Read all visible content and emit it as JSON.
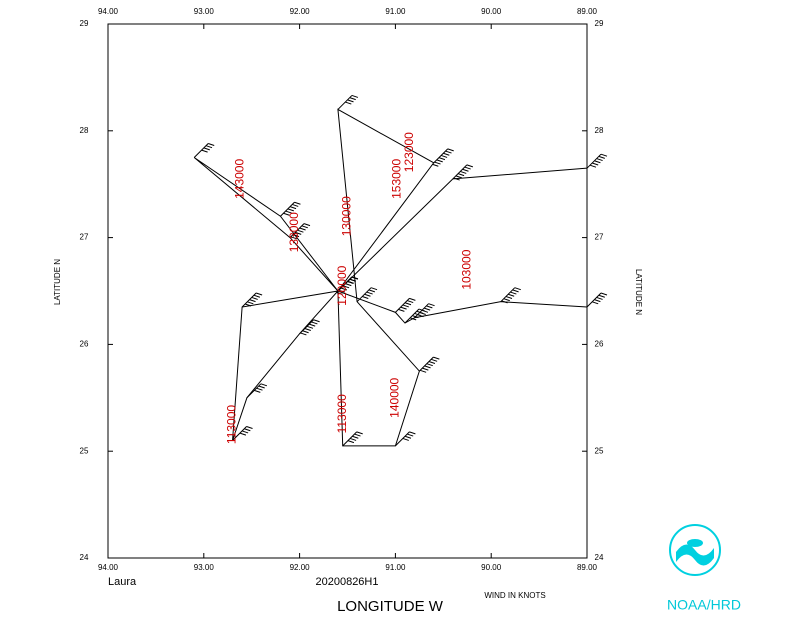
{
  "chart_data": {
    "type": "line",
    "storm": "Laura",
    "mission": "20200826H1",
    "xlabel": "LONGITUDE  W",
    "ylabel": "LATITUDE  N",
    "wind_units": "WIND IN KNOTS",
    "source": "NOAA/HRD",
    "xlim": [
      94,
      89
    ],
    "ylim": [
      24,
      29
    ],
    "xticks": [
      {
        "value": 94,
        "label": "94.00"
      },
      {
        "value": 93,
        "label": "93.00"
      },
      {
        "value": 92,
        "label": "92.00"
      },
      {
        "value": 91,
        "label": "91.00"
      },
      {
        "value": 90,
        "label": "90.00"
      },
      {
        "value": 89,
        "label": "89.00"
      }
    ],
    "yticks": [
      24,
      25,
      26,
      27,
      28,
      29
    ],
    "color": "#000000",
    "label_color": "#cc0000",
    "x": [
      89.0,
      90.4,
      91.6,
      92.6,
      92.7,
      92.55,
      92.0,
      91.6,
      92.1,
      93.1,
      92.2,
      91.6,
      91.55,
      91.0,
      90.75,
      91.4,
      91.6,
      90.6,
      91.6,
      91.0,
      90.9,
      90.8,
      89.9,
      89.0
    ],
    "y": [
      27.65,
      27.55,
      26.5,
      26.35,
      25.1,
      25.5,
      26.1,
      26.5,
      27.0,
      27.75,
      27.2,
      26.5,
      25.05,
      25.05,
      25.75,
      26.4,
      28.2,
      27.7,
      26.5,
      26.3,
      26.2,
      26.25,
      26.4,
      26.35
    ],
    "wind": [
      60,
      70,
      80,
      60,
      40,
      45,
      70,
      30,
      70,
      40,
      60,
      30,
      50,
      40,
      70,
      50,
      40,
      80,
      30,
      60,
      50,
      60,
      70,
      50
    ],
    "annotations": [
      {
        "text": "123000",
        "x": 90.85,
        "y": 27.8
      },
      {
        "text": "153000",
        "x": 90.98,
        "y": 27.55
      },
      {
        "text": "143000",
        "x": 92.62,
        "y": 27.55
      },
      {
        "text": "133000",
        "x": 92.05,
        "y": 27.05
      },
      {
        "text": "130000",
        "x": 91.5,
        "y": 27.2
      },
      {
        "text": "120000",
        "x": 91.55,
        "y": 26.55
      },
      {
        "text": "103000",
        "x": 90.25,
        "y": 26.7
      },
      {
        "text": "113000",
        "x": 92.7,
        "y": 25.25
      },
      {
        "text": "113000",
        "x": 91.55,
        "y": 25.35
      },
      {
        "text": "140000",
        "x": 91.0,
        "y": 25.5
      }
    ]
  }
}
